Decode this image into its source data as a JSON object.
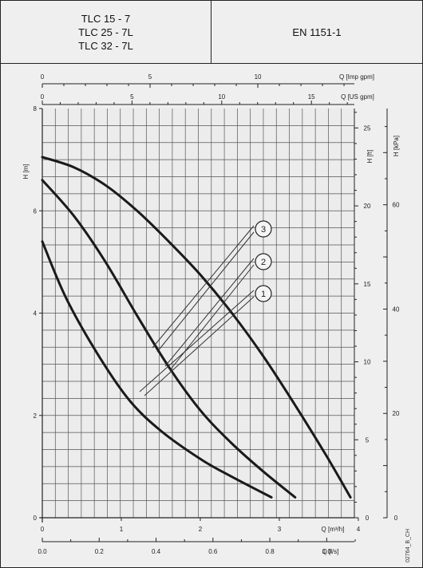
{
  "header": {
    "models": [
      "TLC 15 - 7",
      "TLC 25 - 7L",
      "TLC 32 - 7L"
    ],
    "standard": "EN 1151-1"
  },
  "figure_code": "02764_B_CH",
  "chart_data": {
    "type": "line",
    "title": "",
    "xlabel": "Q [m³/h]",
    "ylabel": "H [m]",
    "xlim": [
      0,
      3.9
    ],
    "ylim": [
      0,
      8
    ],
    "grid": true,
    "x_ticks": [
      "0",
      "1",
      "2",
      "3",
      "4"
    ],
    "y_ticks": [
      "0",
      "2",
      "4",
      "6",
      "8"
    ],
    "secondary_axes": {
      "top_imp": {
        "label": "Q [Imp gpm]",
        "ticks": [
          "0",
          "5",
          "10"
        ]
      },
      "top_us": {
        "label": "Q [US gpm]",
        "ticks": [
          "0",
          "5",
          "10",
          "15"
        ]
      },
      "right_ft": {
        "label": "H [ft]",
        "ticks": [
          "0",
          "5",
          "10",
          "15",
          "20",
          "25"
        ]
      },
      "right_kpa": {
        "label": "H [kPa]",
        "ticks": [
          "0",
          "20",
          "40",
          "60"
        ]
      },
      "bottom_ls": {
        "label": "Q [l/s]",
        "ticks": [
          "0.0",
          "0.2",
          "0.4",
          "0.6",
          "0.8",
          "1.0"
        ]
      }
    },
    "series": [
      {
        "name": "1",
        "x": [
          0,
          0.3,
          0.7,
          1.1,
          1.5,
          2.0,
          2.4,
          2.9
        ],
        "y": [
          5.4,
          4.3,
          3.2,
          2.3,
          1.7,
          1.15,
          0.8,
          0.4
        ]
      },
      {
        "name": "2",
        "x": [
          0,
          0.4,
          0.8,
          1.2,
          1.6,
          2.0,
          2.4,
          2.8,
          3.2
        ],
        "y": [
          6.6,
          5.9,
          5.0,
          3.95,
          2.95,
          2.1,
          1.45,
          0.9,
          0.4
        ]
      },
      {
        "name": "3",
        "x": [
          0,
          0.4,
          0.8,
          1.2,
          1.6,
          2.0,
          2.4,
          2.8,
          3.2,
          3.6,
          3.9
        ],
        "y": [
          7.05,
          6.85,
          6.5,
          6.0,
          5.4,
          4.75,
          4.0,
          3.15,
          2.2,
          1.2,
          0.4
        ]
      }
    ]
  }
}
